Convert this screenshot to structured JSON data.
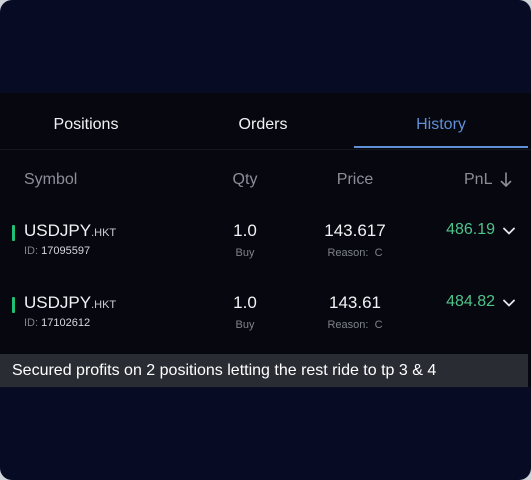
{
  "tabs": [
    {
      "label": "Positions",
      "active": false
    },
    {
      "label": "Orders",
      "active": false
    },
    {
      "label": "History",
      "active": true
    }
  ],
  "columns": {
    "symbol": "Symbol",
    "qty": "Qty",
    "price": "Price",
    "pnl": "PnL"
  },
  "rows": [
    {
      "symbol": "USDJPY",
      "suffix": ".HKT",
      "id_label": "ID:",
      "id": "17095597",
      "qty": "1.0",
      "side": "Buy",
      "price": "143.617",
      "reason_label": "Reason:",
      "reason": "C",
      "pnl": "486.19"
    },
    {
      "symbol": "USDJPY",
      "suffix": ".HKT",
      "id_label": "ID:",
      "id": "17102612",
      "qty": "1.0",
      "side": "Buy",
      "price": "143.61",
      "reason_label": "Reason:",
      "reason": "C",
      "pnl": "484.82"
    }
  ],
  "caption": "Secured profits on 2 positions letting the rest ride to tp 3 & 4",
  "icons": {
    "sort": "arrow-down-icon",
    "expand": "chevron-down-icon"
  },
  "colors": {
    "accent": "#5f8fd6",
    "profit": "#4fc38a",
    "buy_marker": "#1fbf78",
    "background": "#07080f"
  }
}
